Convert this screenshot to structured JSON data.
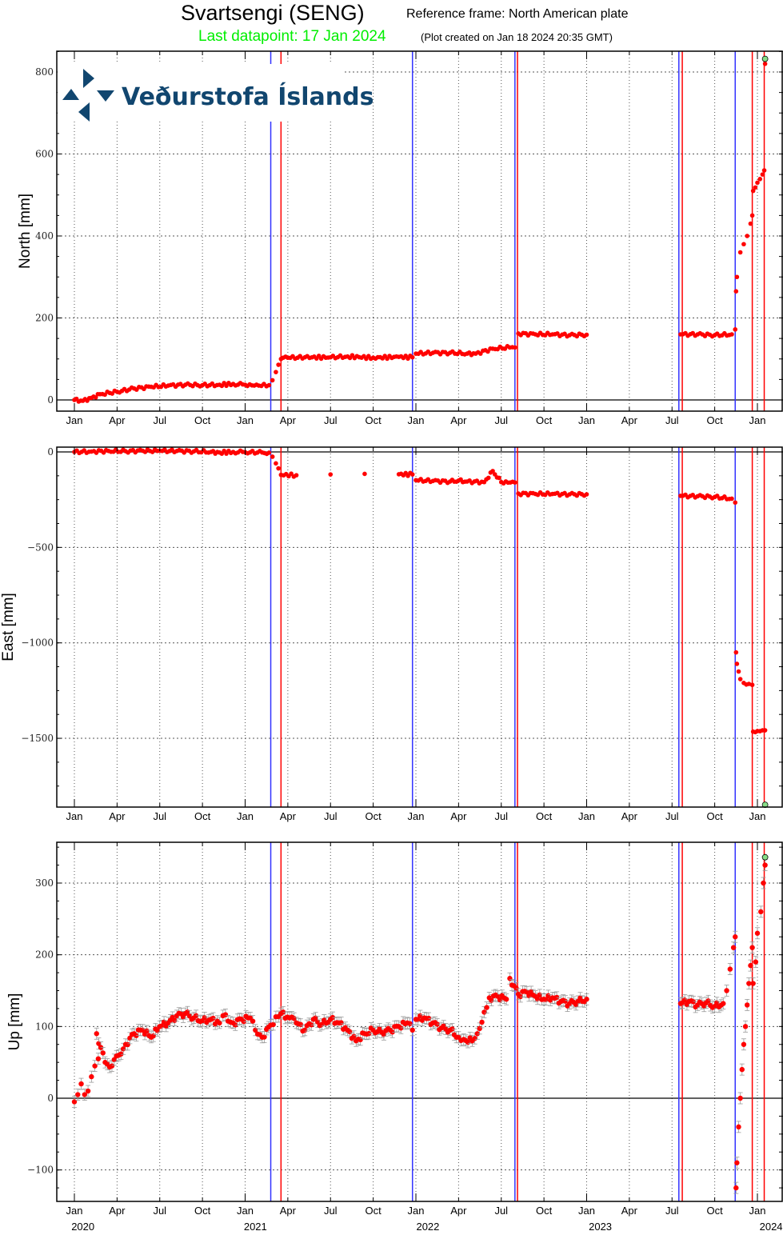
{
  "header": {
    "station_title": "Svartsengi (SENG)",
    "reference_frame": "Reference frame: North American plate",
    "last_datapoint": "Last datapoint: 17 Jan 2024",
    "plot_created": "(Plot created on Jan 18 2024 20:35 GMT)"
  },
  "logo": {
    "text": "Veðurstofa Íslands",
    "color": "#11466f"
  },
  "colors": {
    "data_point": "#ff0000",
    "error_bar": "#999999",
    "last_point": "#88dd88",
    "event_blue": "#3333ff",
    "event_red": "#ff0000",
    "grid": "#555555",
    "title_green": "#00ee00"
  },
  "x_axis": {
    "tick_labels": [
      "Jan",
      "Apr",
      "Jul",
      "Oct",
      "Jan",
      "Apr",
      "Jul",
      "Oct",
      "Jan",
      "Apr",
      "Jul",
      "Oct",
      "Jan",
      "Apr",
      "Jul",
      "Oct",
      "Jan"
    ],
    "tick_years": [
      2020.0,
      2020.25,
      2020.5,
      2020.75,
      2021.0,
      2021.25,
      2021.5,
      2021.75,
      2022.0,
      2022.25,
      2022.5,
      2022.75,
      2023.0,
      2023.25,
      2023.5,
      2023.75,
      2024.0
    ],
    "year_labels": [
      {
        "label": "2020",
        "x": 2020.05
      },
      {
        "label": "2021",
        "x": 2021.06
      },
      {
        "label": "2022",
        "x": 2022.07
      },
      {
        "label": "2023",
        "x": 2023.08
      },
      {
        "label": "2024",
        "x": 2024.08
      }
    ],
    "range": [
      2019.9,
      2024.25
    ]
  },
  "event_lines": {
    "blue": [
      2021.15,
      2021.98,
      2022.58,
      2023.54,
      2023.87
    ],
    "red": [
      2021.21,
      2022.595,
      2023.56,
      2023.97,
      2024.04
    ]
  },
  "chart_data": [
    {
      "type": "scatter",
      "title": "North",
      "ylabel": "North [mm]",
      "ylim": [
        -25,
        855
      ],
      "yticks": [
        0,
        200,
        400,
        600,
        800
      ],
      "grid": true,
      "series": [
        {
          "name": "North",
          "points": [
            [
              2020.0,
              0
            ],
            [
              2020.05,
              -2
            ],
            [
              2020.1,
              5
            ],
            [
              2020.15,
              14
            ],
            [
              2020.25,
              20
            ],
            [
              2020.35,
              28
            ],
            [
              2020.45,
              32
            ],
            [
              2020.55,
              35
            ],
            [
              2020.65,
              37
            ],
            [
              2020.75,
              36
            ],
            [
              2020.85,
              37
            ],
            [
              2020.93,
              39
            ],
            [
              2021.0,
              37
            ],
            [
              2021.08,
              35
            ],
            [
              2021.14,
              36
            ],
            [
              2021.16,
              48
            ],
            [
              2021.18,
              68
            ],
            [
              2021.21,
              100
            ],
            [
              2021.25,
              103
            ],
            [
              2021.35,
              104
            ],
            [
              2021.5,
              104
            ],
            [
              2021.6,
              106
            ],
            [
              2021.75,
              103
            ],
            [
              2021.9,
              105
            ],
            [
              2021.98,
              104
            ],
            [
              2022.0,
              113
            ],
            [
              2022.1,
              115
            ],
            [
              2022.2,
              115
            ],
            [
              2022.3,
              113
            ],
            [
              2022.35,
              113
            ],
            [
              2022.45,
              125
            ],
            [
              2022.55,
              128
            ],
            [
              2022.58,
              128
            ],
            [
              2022.6,
              162
            ],
            [
              2022.7,
              160
            ],
            [
              2022.8,
              160
            ],
            [
              2022.9,
              158
            ],
            [
              2023.0,
              159
            ],
            [
              2023.55,
              160
            ],
            [
              2023.65,
              160
            ],
            [
              2023.75,
              158
            ],
            [
              2023.85,
              160
            ],
            [
              2023.87,
              172
            ],
            [
              2023.875,
              265
            ],
            [
              2023.88,
              300
            ],
            [
              2023.9,
              360
            ],
            [
              2023.92,
              380
            ],
            [
              2023.94,
              400
            ],
            [
              2023.96,
              430
            ],
            [
              2023.97,
              450
            ],
            [
              2023.975,
              510
            ],
            [
              2024.0,
              530
            ],
            [
              2024.03,
              550
            ],
            [
              2024.04,
              560
            ],
            [
              2024.045,
              820
            ]
          ]
        },
        {
          "name": "Last datapoint",
          "points": [
            [
              2024.045,
              832
            ]
          ]
        }
      ]
    },
    {
      "type": "scatter",
      "title": "East",
      "ylabel": "East [mm]",
      "ylim": [
        -1860,
        25
      ],
      "yticks": [
        0,
        -500,
        -1000,
        -1500
      ],
      "ytick_labels": [
        "0",
        "−500",
        "−1000",
        "−1500"
      ],
      "grid": true,
      "series": [
        {
          "name": "East",
          "points": [
            [
              2020.0,
              0
            ],
            [
              2020.1,
              2
            ],
            [
              2020.2,
              5
            ],
            [
              2020.3,
              4
            ],
            [
              2020.4,
              6
            ],
            [
              2020.5,
              6
            ],
            [
              2020.6,
              5
            ],
            [
              2020.7,
              3
            ],
            [
              2020.8,
              0
            ],
            [
              2020.85,
              -3
            ],
            [
              2020.93,
              0
            ],
            [
              2021.0,
              -1
            ],
            [
              2021.1,
              -3
            ],
            [
              2021.14,
              -4
            ],
            [
              2021.16,
              -25
            ],
            [
              2021.18,
              -60
            ],
            [
              2021.21,
              -120
            ],
            [
              2021.3,
              -122
            ],
            [
              2021.5,
              -118
            ],
            [
              2021.7,
              -115
            ],
            [
              2021.9,
              -117
            ],
            [
              2021.98,
              -118
            ],
            [
              2022.0,
              -148
            ],
            [
              2022.1,
              -152
            ],
            [
              2022.2,
              -155
            ],
            [
              2022.25,
              -150
            ],
            [
              2022.3,
              -155
            ],
            [
              2022.4,
              -158
            ],
            [
              2022.45,
              -100
            ],
            [
              2022.5,
              -158
            ],
            [
              2022.58,
              -160
            ],
            [
              2022.6,
              -218
            ],
            [
              2022.7,
              -220
            ],
            [
              2022.8,
              -220
            ],
            [
              2022.9,
              -222
            ],
            [
              2023.0,
              -222
            ],
            [
              2023.55,
              -230
            ],
            [
              2023.65,
              -232
            ],
            [
              2023.75,
              -236
            ],
            [
              2023.85,
              -245
            ],
            [
              2023.87,
              -265
            ],
            [
              2023.875,
              -1050
            ],
            [
              2023.88,
              -1110
            ],
            [
              2023.89,
              -1150
            ],
            [
              2023.9,
              -1190
            ],
            [
              2023.92,
              -1210
            ],
            [
              2023.95,
              -1215
            ],
            [
              2023.97,
              -1220
            ],
            [
              2023.975,
              -1465
            ],
            [
              2024.0,
              -1462
            ],
            [
              2024.03,
              -1458
            ],
            [
              2024.045,
              -1458
            ]
          ]
        },
        {
          "name": "Last datapoint",
          "points": [
            [
              2024.045,
              -1848
            ]
          ]
        }
      ]
    },
    {
      "type": "scatter",
      "title": "Up",
      "ylabel": "Up [mm]",
      "ylim": [
        -145,
        355
      ],
      "yticks": [
        -100,
        0,
        100,
        200,
        300
      ],
      "ytick_labels": [
        "−100",
        "0",
        "100",
        "200",
        "300"
      ],
      "grid": true,
      "error_bars": true,
      "series": [
        {
          "name": "Up",
          "points": [
            [
              2020.0,
              -5
            ],
            [
              2020.02,
              5
            ],
            [
              2020.04,
              20
            ],
            [
              2020.06,
              5
            ],
            [
              2020.08,
              10
            ],
            [
              2020.1,
              30
            ],
            [
              2020.12,
              45
            ],
            [
              2020.14,
              55
            ],
            [
              2020.13,
              90
            ],
            [
              2020.18,
              50
            ],
            [
              2020.22,
              45
            ],
            [
              2020.26,
              60
            ],
            [
              2020.3,
              75
            ],
            [
              2020.35,
              90
            ],
            [
              2020.4,
              95
            ],
            [
              2020.45,
              85
            ],
            [
              2020.5,
              100
            ],
            [
              2020.55,
              105
            ],
            [
              2020.6,
              115
            ],
            [
              2020.65,
              118
            ],
            [
              2020.7,
              112
            ],
            [
              2020.75,
              108
            ],
            [
              2020.8,
              110
            ],
            [
              2020.85,
              105
            ],
            [
              2020.87,
              115
            ],
            [
              2020.93,
              105
            ],
            [
              2020.98,
              110
            ],
            [
              2021.03,
              112
            ],
            [
              2021.06,
              95
            ],
            [
              2021.1,
              85
            ],
            [
              2021.15,
              102
            ],
            [
              2021.21,
              118
            ],
            [
              2021.26,
              112
            ],
            [
              2021.3,
              105
            ],
            [
              2021.35,
              95
            ],
            [
              2021.4,
              110
            ],
            [
              2021.45,
              103
            ],
            [
              2021.5,
              110
            ],
            [
              2021.55,
              105
            ],
            [
              2021.6,
              95
            ],
            [
              2021.65,
              80
            ],
            [
              2021.7,
              90
            ],
            [
              2021.75,
              95
            ],
            [
              2021.8,
              92
            ],
            [
              2021.85,
              95
            ],
            [
              2021.9,
              100
            ],
            [
              2021.95,
              105
            ],
            [
              2021.98,
              95
            ],
            [
              2022.0,
              110
            ],
            [
              2022.05,
              112
            ],
            [
              2022.1,
              105
            ],
            [
              2022.15,
              98
            ],
            [
              2022.2,
              95
            ],
            [
              2022.25,
              85
            ],
            [
              2022.28,
              82
            ],
            [
              2022.33,
              80
            ],
            [
              2022.36,
              90
            ],
            [
              2022.4,
              120
            ],
            [
              2022.43,
              140
            ],
            [
              2022.48,
              142
            ],
            [
              2022.53,
              138
            ],
            [
              2022.55,
              167
            ],
            [
              2022.6,
              145
            ],
            [
              2022.65,
              148
            ],
            [
              2022.7,
              142
            ],
            [
              2022.75,
              138
            ],
            [
              2022.8,
              140
            ],
            [
              2022.85,
              135
            ],
            [
              2022.9,
              132
            ],
            [
              2022.95,
              135
            ],
            [
              2023.0,
              138
            ],
            [
              2023.55,
              132
            ],
            [
              2023.6,
              135
            ],
            [
              2023.65,
              130
            ],
            [
              2023.7,
              133
            ],
            [
              2023.75,
              128
            ],
            [
              2023.8,
              132
            ],
            [
              2023.82,
              150
            ],
            [
              2023.84,
              180
            ],
            [
              2023.86,
              210
            ],
            [
              2023.87,
              225
            ],
            [
              2023.875,
              -125
            ],
            [
              2023.88,
              -90
            ],
            [
              2023.89,
              -40
            ],
            [
              2023.9,
              0
            ],
            [
              2023.91,
              40
            ],
            [
              2023.92,
              75
            ],
            [
              2023.93,
              100
            ],
            [
              2023.94,
              130
            ],
            [
              2023.95,
              160
            ],
            [
              2023.96,
              185
            ],
            [
              2023.97,
              210
            ],
            [
              2023.975,
              160
            ],
            [
              2023.99,
              190
            ],
            [
              2024.0,
              230
            ],
            [
              2024.02,
              260
            ],
            [
              2024.035,
              300
            ],
            [
              2024.045,
              325
            ]
          ]
        },
        {
          "name": "Last datapoint",
          "points": [
            [
              2024.045,
              336
            ]
          ]
        }
      ]
    }
  ]
}
